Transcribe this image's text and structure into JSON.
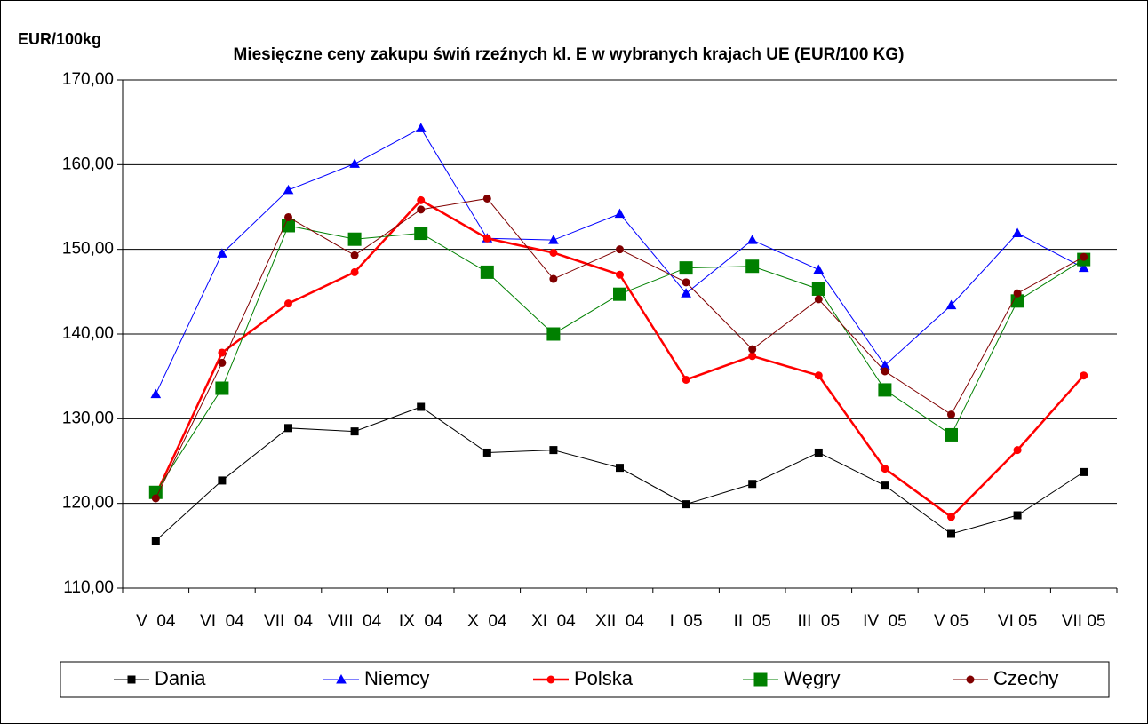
{
  "chart_data": {
    "type": "line",
    "title": "Miesięczne ceny zakupu świń rzeźnych kl. E w wybranych krajach UE (EUR/100 KG)",
    "y_label": "EUR/100kg",
    "categories": [
      "V  04",
      "VI  04",
      "VII  04",
      "VIII  04",
      "IX  04",
      "X  04",
      "XI  04",
      "XII  04",
      "I  05",
      "II  05",
      "III  05",
      "IV  05",
      "V 05",
      "VI 05",
      "VII 05"
    ],
    "ylim": [
      110,
      170
    ],
    "yticks": [
      {
        "value": 110,
        "label": "110,00"
      },
      {
        "value": 120,
        "label": "120,00"
      },
      {
        "value": 130,
        "label": "130,00"
      },
      {
        "value": 140,
        "label": "140,00"
      },
      {
        "value": 150,
        "label": "150,00"
      },
      {
        "value": 160,
        "label": "160,00"
      },
      {
        "value": 170,
        "label": "170,00"
      }
    ],
    "grid": true,
    "legend": "bottom",
    "series": [
      {
        "name": "Dania",
        "color": "#000000",
        "marker": "square",
        "values": [
          115.6,
          122.7,
          128.9,
          128.5,
          131.4,
          126.0,
          126.3,
          124.2,
          119.9,
          122.3,
          126.0,
          122.1,
          116.4,
          118.6,
          123.7
        ]
      },
      {
        "name": "Niemcy",
        "color": "#0000ff",
        "marker": "triangle",
        "values": [
          132.9,
          149.5,
          157.0,
          160.1,
          164.3,
          151.3,
          151.1,
          154.2,
          144.8,
          151.1,
          147.6,
          136.3,
          143.4,
          151.9,
          147.8
        ]
      },
      {
        "name": "Polska",
        "color": "#ff0000",
        "marker": "circle",
        "values": [
          121.0,
          137.8,
          143.6,
          147.3,
          155.8,
          151.3,
          149.6,
          147.0,
          134.6,
          137.4,
          135.1,
          124.1,
          118.4,
          126.3,
          135.1
        ]
      },
      {
        "name": "Węgry",
        "color": "#008000",
        "marker": "big-square",
        "values": [
          121.3,
          133.6,
          152.8,
          151.2,
          151.9,
          147.3,
          140.0,
          144.7,
          147.8,
          148.0,
          145.3,
          133.4,
          128.1,
          143.9,
          148.8
        ]
      },
      {
        "name": "Czechy",
        "color": "#800000",
        "marker": "circle",
        "values": [
          120.6,
          136.6,
          153.8,
          149.3,
          154.7,
          156.0,
          146.5,
          150.0,
          146.1,
          138.2,
          144.1,
          135.6,
          130.5,
          144.8,
          149.1
        ]
      }
    ]
  }
}
